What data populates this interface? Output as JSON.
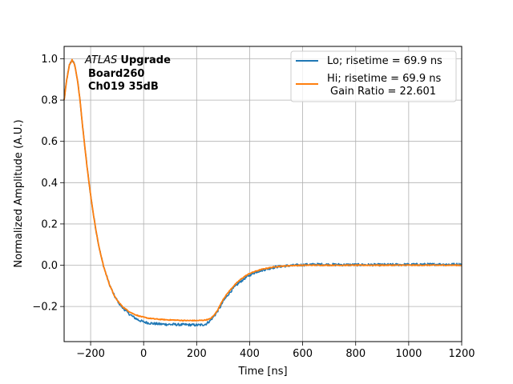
{
  "chart_data": {
    "type": "line",
    "xlabel": "Time [ns]",
    "ylabel": "Normalized Amplitude (A.U.)",
    "xlim": [
      -300,
      1200
    ],
    "ylim": [
      -0.37,
      1.06
    ],
    "xticks": [
      -200,
      0,
      200,
      400,
      600,
      800,
      1000,
      1200
    ],
    "xtick_labels": [
      "−200",
      "0",
      "200",
      "400",
      "600",
      "800",
      "1000",
      "1200"
    ],
    "yticks": [
      -0.2,
      0.0,
      0.2,
      0.4,
      0.6,
      0.8,
      1.0
    ],
    "ytick_labels": [
      "−0.2",
      "0.0",
      "0.2",
      "0.4",
      "0.6",
      "0.8",
      "1.0"
    ],
    "grid": true,
    "legend_position": "top-right",
    "annotation": {
      "line1_italic": "ATLAS",
      "line1_bold": "Upgrade",
      "line2": "Board260",
      "line3": "Ch019 35dB"
    },
    "series": [
      {
        "name": "Lo; risetime = 69.9 ns",
        "color": "#1f77b4",
        "noise": 0.006,
        "x": [
          -300,
          -290,
          -280,
          -270,
          -260,
          -250,
          -240,
          -230,
          -220,
          -210,
          -200,
          -190,
          -180,
          -170,
          -160,
          -150,
          -140,
          -130,
          -120,
          -110,
          -100,
          -90,
          -80,
          -60,
          -40,
          -20,
          0,
          20,
          40,
          60,
          80,
          100,
          120,
          140,
          160,
          180,
          200,
          220,
          235,
          250,
          260,
          270,
          280,
          290,
          300,
          320,
          340,
          360,
          380,
          400,
          420,
          440,
          460,
          480,
          500,
          540,
          580,
          620,
          660,
          700,
          760,
          820,
          900,
          1000,
          1100,
          1200
        ],
        "y": [
          0.8,
          0.9,
          0.97,
          0.995,
          0.97,
          0.9,
          0.8,
          0.67,
          0.55,
          0.44,
          0.34,
          0.25,
          0.17,
          0.1,
          0.04,
          -0.01,
          -0.05,
          -0.09,
          -0.12,
          -0.15,
          -0.17,
          -0.19,
          -0.205,
          -0.23,
          -0.25,
          -0.265,
          -0.275,
          -0.28,
          -0.283,
          -0.285,
          -0.286,
          -0.287,
          -0.287,
          -0.288,
          -0.288,
          -0.289,
          -0.29,
          -0.289,
          -0.285,
          -0.27,
          -0.255,
          -0.24,
          -0.22,
          -0.2,
          -0.175,
          -0.14,
          -0.11,
          -0.085,
          -0.065,
          -0.048,
          -0.035,
          -0.026,
          -0.02,
          -0.014,
          -0.008,
          -0.003,
          0.0,
          0.003,
          0.004,
          0.003,
          0.002,
          0.002,
          0.002,
          0.003,
          0.004,
          0.004
        ]
      },
      {
        "name": "Hi; risetime = 69.9 ns",
        "name_line2": "Gain Ratio = 22.601",
        "color": "#ff7f0e",
        "noise": 0.002,
        "x": [
          -300,
          -290,
          -280,
          -270,
          -260,
          -250,
          -240,
          -230,
          -220,
          -210,
          -200,
          -190,
          -180,
          -170,
          -160,
          -150,
          -140,
          -130,
          -120,
          -110,
          -100,
          -90,
          -80,
          -60,
          -40,
          -20,
          0,
          20,
          40,
          60,
          80,
          100,
          120,
          140,
          160,
          180,
          200,
          220,
          235,
          250,
          260,
          270,
          280,
          290,
          300,
          320,
          340,
          360,
          380,
          400,
          420,
          440,
          460,
          480,
          500,
          540,
          580,
          620,
          660,
          700,
          760,
          820,
          900,
          1000,
          1100,
          1200
        ],
        "y": [
          0.8,
          0.9,
          0.97,
          0.995,
          0.97,
          0.9,
          0.8,
          0.67,
          0.55,
          0.44,
          0.34,
          0.25,
          0.17,
          0.1,
          0.04,
          -0.01,
          -0.05,
          -0.09,
          -0.12,
          -0.15,
          -0.17,
          -0.185,
          -0.2,
          -0.22,
          -0.235,
          -0.245,
          -0.252,
          -0.257,
          -0.26,
          -0.262,
          -0.264,
          -0.265,
          -0.266,
          -0.267,
          -0.268,
          -0.268,
          -0.268,
          -0.267,
          -0.265,
          -0.26,
          -0.25,
          -0.235,
          -0.215,
          -0.19,
          -0.165,
          -0.13,
          -0.1,
          -0.075,
          -0.055,
          -0.04,
          -0.03,
          -0.022,
          -0.016,
          -0.011,
          -0.007,
          -0.003,
          -0.001,
          0.0,
          0.0,
          0.0,
          0.0,
          0.0,
          0.0,
          0.0,
          0.0,
          0.0
        ]
      }
    ]
  }
}
